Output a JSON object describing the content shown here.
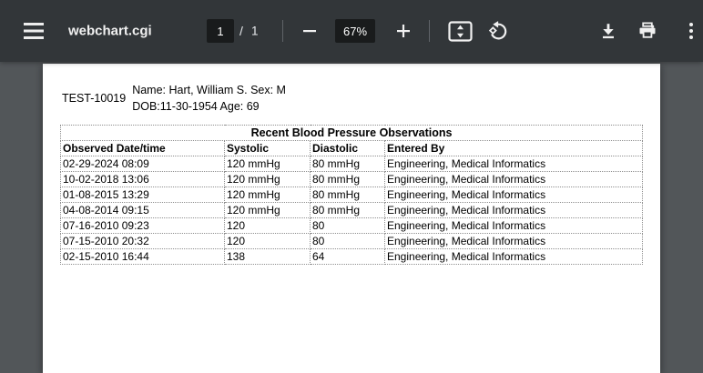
{
  "colors": {
    "toolbar_bg": "#323639",
    "toolbar_text": "#f1f1f1",
    "toolbar_input_bg": "#191b1c",
    "toolbar_divider": "#5f6368",
    "viewer_bg": "#525659",
    "page_bg": "#ffffff",
    "table_border": "#8f8f8f",
    "document_text": "#000000"
  },
  "toolbar": {
    "title": "webchart.cgi",
    "page": {
      "current": "1",
      "separator": "/",
      "total": "1"
    },
    "zoom_level": "67%",
    "icons": {
      "menu": "hamburger-menu",
      "zoom_out": "minus",
      "zoom_in": "plus",
      "fit_page": "fit-to-page-arrows",
      "rotate": "rotate-counterclockwise",
      "download": "download-arrow",
      "print": "printer",
      "more": "vertical-ellipsis"
    }
  },
  "document": {
    "patient_id": "TEST-10019",
    "patient_info_line1": "Name: Hart, William S. Sex: M",
    "patient_info_line2": "DOB:11-30-1954 Age: 69",
    "table": {
      "title": "Recent Blood Pressure Observations",
      "columns": [
        "Observed Date/time",
        "Systolic",
        "Diastolic",
        "Entered By"
      ],
      "rows": [
        [
          "02-29-2024 08:09",
          "120 mmHg",
          "80 mmHg",
          "Engineering, Medical Informatics"
        ],
        [
          "10-02-2018 13:06",
          "120 mmHg",
          "80 mmHg",
          "Engineering, Medical Informatics"
        ],
        [
          "01-08-2015 13:29",
          "120 mmHg",
          "80 mmHg",
          "Engineering, Medical Informatics"
        ],
        [
          "04-08-2014 09:15",
          "120 mmHg",
          "80 mmHg",
          "Engineering, Medical Informatics"
        ],
        [
          "07-16-2010 09:23",
          "120",
          "80",
          "Engineering, Medical Informatics"
        ],
        [
          "07-15-2010 20:32",
          "120",
          "80",
          "Engineering, Medical Informatics"
        ],
        [
          "02-15-2010 16:44",
          "138",
          "64",
          "Engineering, Medical Informatics"
        ]
      ]
    }
  }
}
